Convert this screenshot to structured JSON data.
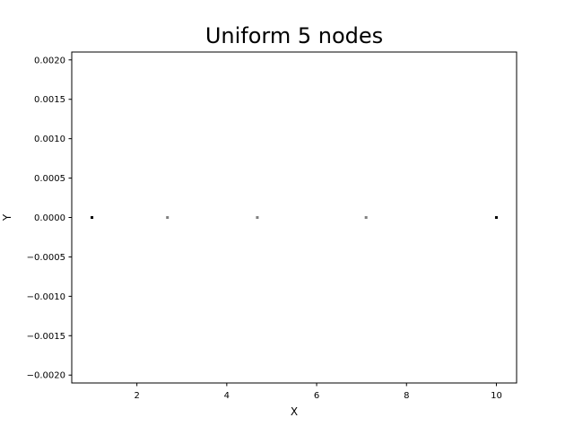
{
  "chart_data": {
    "type": "scatter",
    "title": "Uniform 5 nodes",
    "xlabel": "X",
    "ylabel": "Y",
    "xlim": [
      0.55,
      10.45
    ],
    "ylim": [
      -0.0021,
      0.0021
    ],
    "xticks": [
      2,
      4,
      6,
      8,
      10
    ],
    "xtick_labels": [
      "2",
      "4",
      "6",
      "8",
      "10"
    ],
    "yticks": [
      0.002,
      0.0015,
      0.001,
      0.0005,
      0.0,
      -0.0005,
      -0.001,
      -0.0015,
      -0.002
    ],
    "ytick_labels": [
      "0.0020",
      "0.0015",
      "0.0010",
      "0.0005",
      "0.0000",
      "−0.0005",
      "−0.0010",
      "−0.0015",
      "−0.0020"
    ],
    "grid": false,
    "points": [
      {
        "x": 1.0,
        "y": 0.0,
        "color": "#000000"
      },
      {
        "x": 2.68,
        "y": 0.0,
        "color": "#808080"
      },
      {
        "x": 4.68,
        "y": 0.0,
        "color": "#808080"
      },
      {
        "x": 7.1,
        "y": 0.0,
        "color": "#808080"
      },
      {
        "x": 10.0,
        "y": 0.0,
        "color": "#000000"
      }
    ]
  }
}
